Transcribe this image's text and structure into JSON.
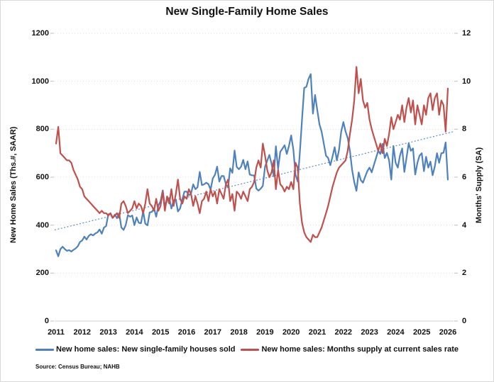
{
  "chart": {
    "title": "New Single-Family Home Sales",
    "source": "Source: Census Bureau; NAHB"
  },
  "legend": {
    "items": [
      {
        "label": "New home sales: New single-family houses sold",
        "color": "#4F81BD"
      },
      {
        "label": "New home sales: Months supply at current sales rate",
        "color": "#C0504D"
      }
    ]
  },
  "colors": {
    "blue": "#4F81BD",
    "red": "#C0504D",
    "trend": "#5B8DC8",
    "grid": "#D9D9D9",
    "tick": "#C0C0C0",
    "text": "#111111",
    "background": "#FFFFFF"
  },
  "chart_data": {
    "type": "line",
    "title": "New Single-Family Home Sales",
    "frequency": "monthly",
    "x_start_year": 2011,
    "x_end_year": 2026,
    "x_tick_labels": [
      "2011",
      "2012",
      "2013",
      "2014",
      "2015",
      "2016",
      "2017",
      "2018",
      "2019",
      "2020",
      "2021",
      "2022",
      "2023",
      "2024",
      "2025",
      "2026"
    ],
    "grid": "horizontal-dotted",
    "legend_position": "bottom",
    "left_axis": {
      "label": "New Home Sales (Ths.#, SAAR)",
      "min": 0,
      "max": 1200,
      "tick_step": 200,
      "ticks": [
        0,
        200,
        400,
        600,
        800,
        1000,
        1200
      ]
    },
    "right_axis": {
      "label": "Months' Supply (SA)",
      "min": 0,
      "max": 12,
      "tick_step": 2,
      "ticks": [
        0,
        2,
        4,
        6,
        8,
        10,
        12
      ]
    },
    "trendline": {
      "axis": "left",
      "style": "dotted",
      "color": "#5B8DC8",
      "start_value": 380,
      "end_value": 790
    },
    "series": [
      {
        "name": "New home sales: New single-family houses sold",
        "axis": "left",
        "color": "#4F81BD",
        "values": [
          295,
          270,
          300,
          310,
          300,
          293,
          296,
          290,
          297,
          303,
          312,
          330,
          336,
          352,
          340,
          355,
          362,
          357,
          365,
          370,
          382,
          364,
          390,
          396,
          445,
          448,
          430,
          444,
          429,
          450,
          390,
          380,
          400,
          442,
          435,
          440,
          400,
          432,
          410,
          408,
          457,
          406,
          399,
          453,
          455,
          470,
          435,
          481,
          500,
          545,
          477,
          508,
          513,
          469,
          503,
          507,
          457,
          470,
          508,
          540,
          540,
          525,
          531,
          570,
          550,
          558,
          622,
          567,
          570,
          577,
          571,
          548,
          595,
          610,
          644,
          582,
          605,
          605,
          571,
          557,
          637,
          618,
          711,
          643,
          633,
          644,
          672,
          633,
          666,
          611,
          608,
          607,
          553,
          544,
          552,
          564,
          644,
          669,
          693,
          656,
          604,
          729,
          635,
          706,
          719,
          733,
          697,
          730,
          774,
          716,
          612,
          582,
          704,
          840,
          972,
          977,
          1010,
          1030,
          865,
          943,
          880,
          820,
          790,
          740,
          690,
          680,
          650,
          686,
          725,
          670,
          715,
          790,
          830,
          790,
          763,
          710,
          630,
          580,
          543,
          620,
          588,
          577,
          602,
          625,
          640,
          620,
          650,
          680,
          710,
          697,
          739,
          680,
          701,
          670,
          590,
          730,
          660,
          640,
          690,
          720,
          622,
          680,
          741,
          710,
          720,
          611,
          660,
          690,
          700,
          625,
          685,
          640,
          665,
          608,
          645,
          700,
          660,
          700,
          702,
          745,
          590
        ]
      },
      {
        "name": "New home sales: Months supply at current sales rate",
        "axis": "right",
        "color": "#C0504D",
        "values": [
          7.4,
          8.1,
          7.0,
          6.9,
          6.8,
          6.7,
          6.7,
          6.6,
          6.3,
          6.1,
          5.9,
          5.6,
          5.5,
          5.2,
          5.1,
          5.0,
          4.9,
          4.8,
          4.7,
          4.6,
          4.5,
          4.6,
          4.5,
          4.5,
          4.4,
          4.5,
          4.3,
          4.4,
          4.5,
          4.3,
          4.9,
          5.0,
          4.8,
          4.5,
          4.6,
          4.7,
          5.0,
          4.7,
          4.9,
          4.8,
          4.5,
          4.9,
          5.5,
          4.9,
          4.8,
          4.6,
          5.1,
          4.6,
          4.8,
          5.4,
          4.6,
          5.2,
          4.9,
          5.5,
          4.8,
          5.3,
          5.9,
          5.1,
          4.9,
          5.2,
          5.1,
          5.5,
          5.3,
          4.8,
          5.2,
          4.9,
          4.5,
          5.0,
          5.1,
          5.4,
          5.0,
          5.5,
          5.2,
          5.4,
          4.9,
          5.5,
          5.3,
          5.1,
          5.7,
          5.9,
          5.0,
          5.3,
          4.6,
          5.4,
          5.3,
          5.1,
          5.4,
          5.2,
          5.0,
          5.5,
          5.6,
          5.8,
          6.4,
          6.7,
          6.4,
          7.4,
          6.9,
          6.3,
          6.0,
          6.2,
          6.7,
          5.5,
          6.3,
          5.7,
          5.6,
          5.4,
          5.6,
          5.5,
          5.8,
          5.5,
          6.6,
          6.4,
          4.9,
          4.1,
          3.7,
          3.5,
          3.4,
          3.3,
          3.6,
          3.5,
          3.5,
          3.7,
          3.9,
          4.2,
          4.5,
          4.8,
          5.2,
          5.6,
          5.9,
          6.2,
          6.4,
          6.5,
          6.6,
          6.7,
          7.1,
          7.8,
          8.4,
          9.2,
          10.6,
          9.5,
          10.1,
          9.2,
          8.9,
          9.1,
          8.4,
          8.0,
          7.7,
          7.4,
          7.1,
          7.4,
          7.0,
          7.6,
          7.3,
          7.8,
          8.5,
          8.0,
          8.3,
          8.6,
          8.4,
          9.0,
          8.3,
          8.9,
          9.3,
          8.7,
          9.2,
          8.2,
          9.0,
          8.6,
          8.2,
          9.0,
          8.6,
          9.3,
          9.5,
          8.8,
          9.3,
          9.5,
          8.6,
          9.2,
          9.0,
          7.9,
          9.7
        ]
      }
    ]
  }
}
